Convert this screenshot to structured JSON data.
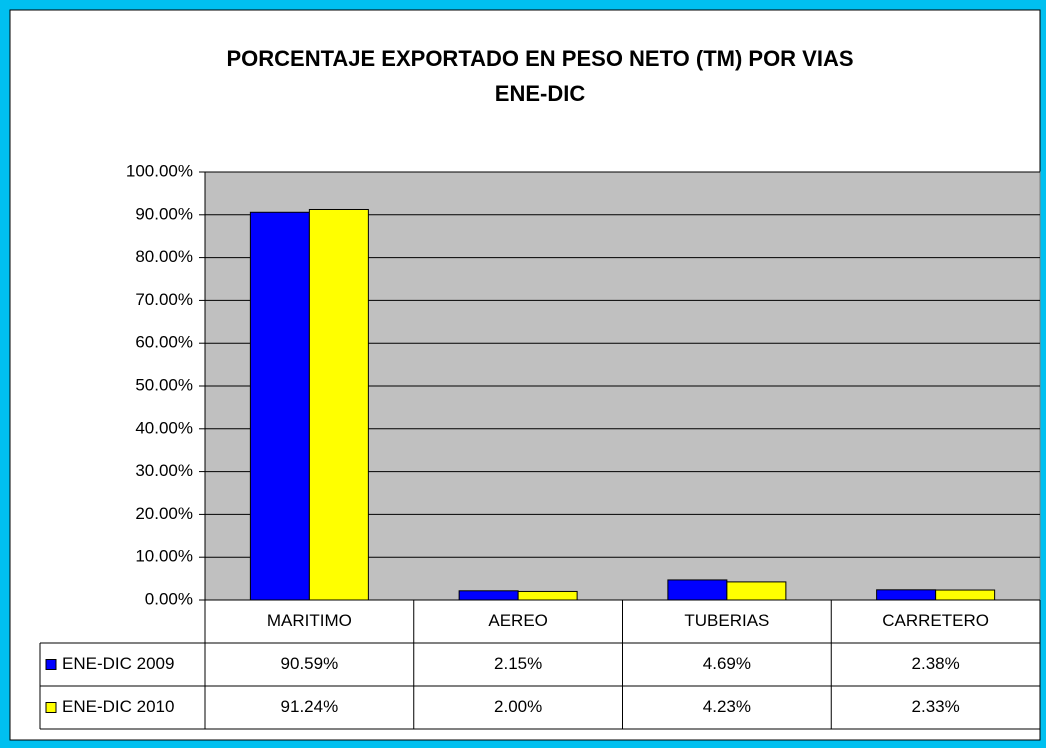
{
  "chart_data": {
    "type": "bar",
    "title": "PORCENTAJE EXPORTADO EN PESO NETO (TM) POR VIAS",
    "subtitle": "ENE-DIC",
    "categories": [
      "MARITIMO",
      "AEREO",
      "TUBERIAS",
      "CARRETERO"
    ],
    "series": [
      {
        "name": "ENE-DIC 2009",
        "color": "#0000ff",
        "values": [
          90.59,
          2.15,
          4.69,
          2.38
        ],
        "value_labels": [
          "90.59%",
          "2.15%",
          "4.69%",
          "2.38%"
        ]
      },
      {
        "name": "ENE-DIC 2010",
        "color": "#ffff00",
        "values": [
          91.24,
          2.0,
          4.23,
          2.33
        ],
        "value_labels": [
          "91.24%",
          "2.00%",
          "4.23%",
          "2.33%"
        ]
      }
    ],
    "ylim": [
      0,
      100
    ],
    "yticks": [
      {
        "value": 0,
        "label": "0.00%"
      },
      {
        "value": 10,
        "label": "10.00%"
      },
      {
        "value": 20,
        "label": "20.00%"
      },
      {
        "value": 30,
        "label": "30.00%"
      },
      {
        "value": 40,
        "label": "40.00%"
      },
      {
        "value": 50,
        "label": "50.00%"
      },
      {
        "value": 60,
        "label": "60.00%"
      },
      {
        "value": 70,
        "label": "70.00%"
      },
      {
        "value": 80,
        "label": "80.00%"
      },
      {
        "value": 90,
        "label": "90.00%"
      },
      {
        "value": 100,
        "label": "100.00%"
      }
    ],
    "grid": true,
    "plot_background": "#c0c0c0"
  }
}
